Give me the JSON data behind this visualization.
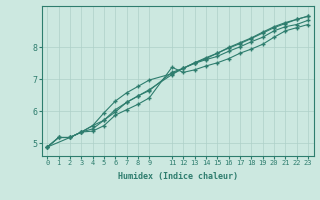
{
  "xlabel": "Humidex (Indice chaleur)",
  "ylabel": "",
  "bg_color": "#cce8e0",
  "line_color": "#2e7d6e",
  "grid_color": "#aed0c8",
  "xlim": [
    -0.5,
    23.5
  ],
  "ylim": [
    4.6,
    9.3
  ],
  "xticks": [
    0,
    1,
    2,
    3,
    4,
    5,
    6,
    7,
    8,
    9,
    11,
    12,
    13,
    14,
    15,
    16,
    17,
    18,
    19,
    20,
    21,
    22,
    23
  ],
  "yticks": [
    5,
    6,
    7,
    8
  ],
  "line1_x": [
    0,
    1,
    2,
    3,
    4,
    5,
    6,
    7,
    8,
    9,
    11,
    12,
    13,
    14,
    15,
    16,
    17,
    18,
    19,
    20,
    21,
    22,
    23
  ],
  "line1_y": [
    4.88,
    5.18,
    5.18,
    5.35,
    5.38,
    5.55,
    5.88,
    6.05,
    6.22,
    6.42,
    7.38,
    7.22,
    7.3,
    7.42,
    7.52,
    7.65,
    7.82,
    7.95,
    8.1,
    8.32,
    8.52,
    8.62,
    8.72
  ],
  "line2_x": [
    0,
    1,
    2,
    3,
    4,
    5,
    6,
    7,
    8,
    9,
    11,
    12,
    13,
    14,
    15,
    16,
    17,
    18,
    19,
    20,
    21,
    22,
    23
  ],
  "line2_y": [
    4.88,
    5.18,
    5.18,
    5.35,
    5.45,
    5.72,
    6.05,
    6.28,
    6.48,
    6.65,
    7.22,
    7.35,
    7.5,
    7.62,
    7.72,
    7.88,
    8.02,
    8.18,
    8.32,
    8.52,
    8.65,
    8.72,
    8.85
  ],
  "line3_x": [
    0,
    2,
    3,
    4,
    5,
    6,
    7,
    8,
    9,
    11,
    12,
    13,
    14,
    15,
    16,
    17,
    18,
    19,
    20,
    21,
    22,
    23
  ],
  "line3_y": [
    4.88,
    5.18,
    5.35,
    5.55,
    5.72,
    5.98,
    6.28,
    6.48,
    6.68,
    7.15,
    7.35,
    7.52,
    7.68,
    7.82,
    7.98,
    8.12,
    8.28,
    8.45,
    8.62,
    8.75,
    8.88,
    8.98
  ],
  "line4_x": [
    0,
    1,
    2,
    3,
    4,
    5,
    6,
    7,
    8,
    9,
    11,
    12,
    13,
    14,
    15,
    16,
    17,
    18,
    19,
    20,
    21,
    22,
    23
  ],
  "line4_y": [
    4.88,
    5.18,
    5.18,
    5.35,
    5.55,
    5.95,
    6.32,
    6.58,
    6.78,
    6.98,
    7.18,
    7.35,
    7.52,
    7.65,
    7.82,
    8.0,
    8.15,
    8.3,
    8.48,
    8.65,
    8.78,
    8.88,
    8.98
  ]
}
